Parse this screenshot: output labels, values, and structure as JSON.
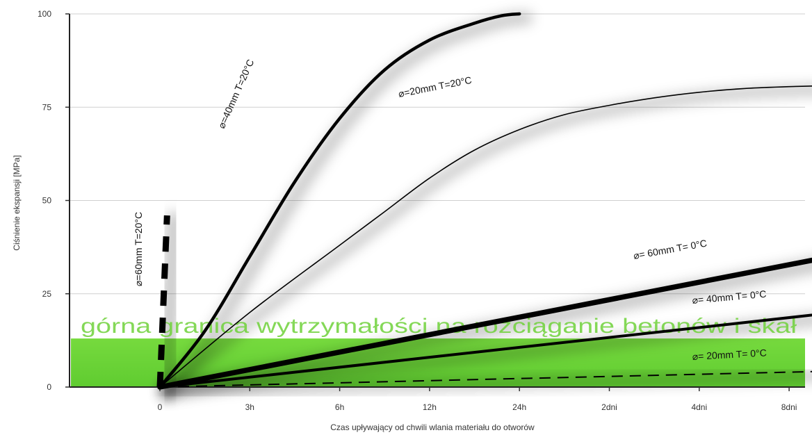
{
  "chart_data": {
    "type": "line",
    "title": "",
    "xlabel": "Czas upływający od chwili wlania materiału do otworów",
    "ylabel": "Ciśnienie ekspansji [MPa]",
    "x_categories": [
      "0",
      "3h",
      "6h",
      "12h",
      "24h",
      "2dni",
      "4dni",
      "8dni"
    ],
    "ylim": [
      0,
      100
    ],
    "yticks": [
      0,
      25,
      50,
      75,
      100
    ],
    "grid": "horizontal",
    "band": {
      "label": "górna granica wytrzymałości na rozciąganie betonów i skał",
      "y_from": 0,
      "y_to": 13,
      "color": "#6fd13a"
    },
    "series": [
      {
        "name": "⌀=40mm T=20°C",
        "style": "thick",
        "points": [
          [
            "0",
            0
          ],
          [
            "0.5",
            15
          ],
          [
            "1",
            35
          ],
          [
            "1.5",
            55
          ],
          [
            "2",
            72
          ],
          [
            "2.5",
            85
          ],
          [
            "3",
            93
          ],
          [
            "3.5",
            97.5
          ],
          [
            "3.8",
            99.5
          ],
          [
            "4",
            100
          ]
        ]
      },
      {
        "name": "⌀=20mm T=20°C",
        "style": "thin",
        "points": [
          [
            "0",
            0
          ],
          [
            "1",
            20
          ],
          [
            "2",
            38
          ],
          [
            "2.5",
            47
          ],
          [
            "3",
            56
          ],
          [
            "3.5",
            63.5
          ],
          [
            "4",
            69
          ],
          [
            "4.5",
            73
          ],
          [
            "5",
            75.5
          ],
          [
            "5.5",
            77.5
          ],
          [
            "6",
            79
          ],
          [
            "6.5",
            80
          ],
          [
            "7",
            80.5
          ],
          [
            "7.5",
            80.8
          ]
        ]
      },
      {
        "name": "⌀=60mm T=20°C",
        "style": "dashed",
        "points": [
          [
            "0",
            0
          ],
          [
            "0.08",
            46
          ]
        ]
      },
      {
        "name": "⌀= 60mm T= 0°C",
        "style": "very-thick",
        "points": [
          [
            "0",
            0
          ],
          [
            "7.9",
            37
          ]
        ]
      },
      {
        "name": "⌀= 40mm T= 0°C",
        "style": "medium",
        "points": [
          [
            "0",
            0
          ],
          [
            "7.9",
            21
          ]
        ]
      },
      {
        "name": "⌀= 20mm T= 0°C",
        "style": "dashed-thin",
        "points": [
          [
            "0",
            0
          ],
          [
            "7.9",
            4.5
          ]
        ]
      }
    ]
  }
}
